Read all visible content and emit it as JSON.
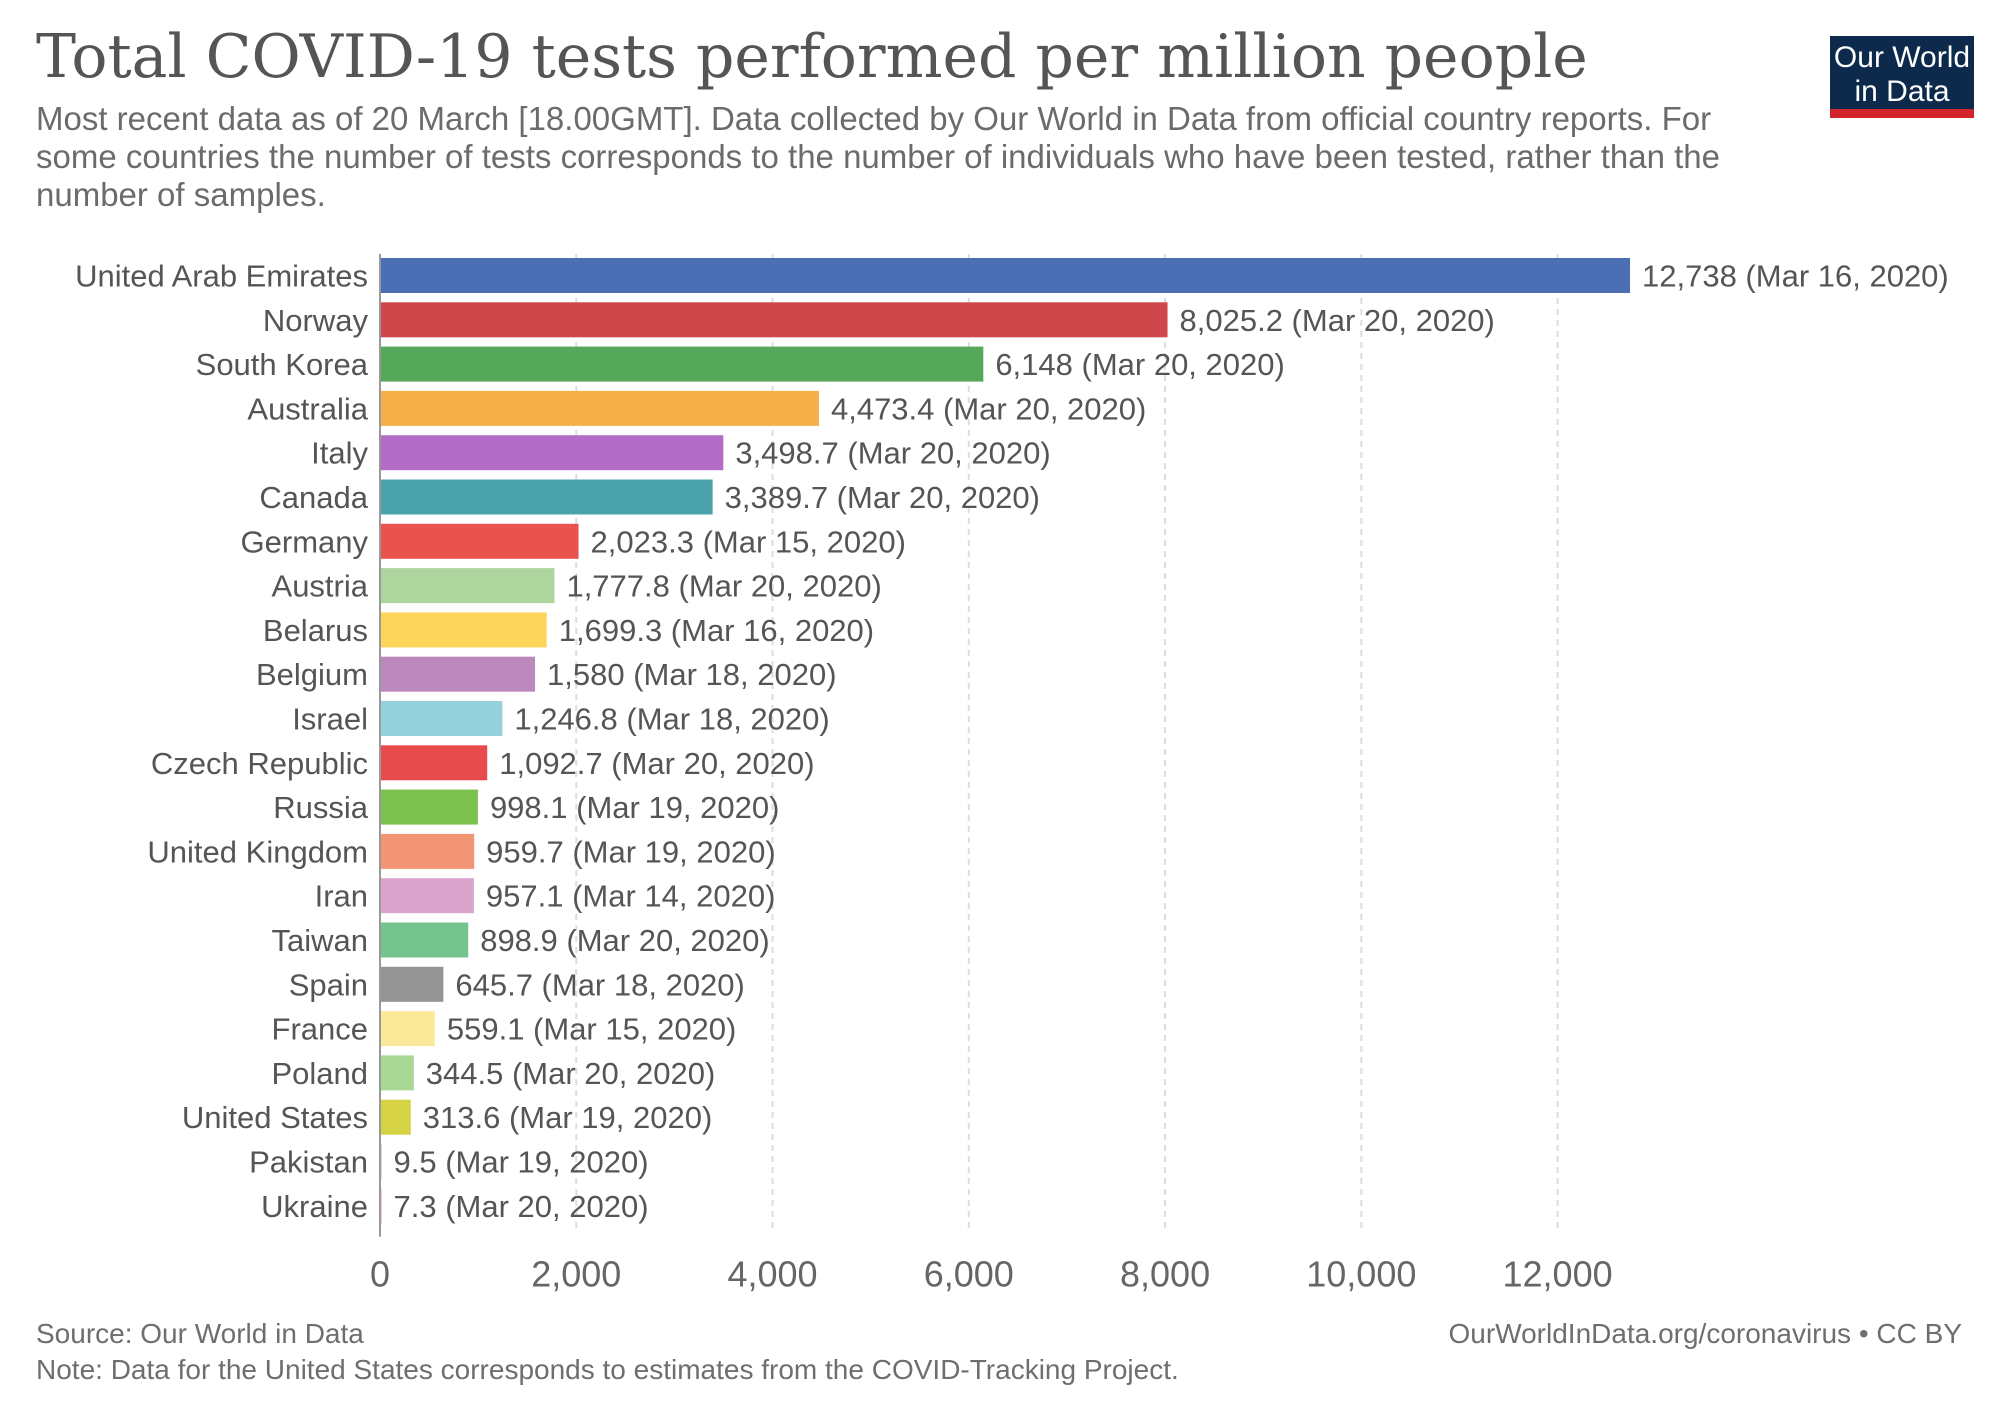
{
  "title": "Total COVID-19 tests performed per million people",
  "subtitle": "Most recent data as of 20 March [18.00GMT]. Data collected by Our World in Data from official country reports. For some countries the number of tests corresponds to the number of individuals who have been tested, rather than the number of samples.",
  "logo": {
    "line1": "Our World",
    "line2": "in Data"
  },
  "footer": {
    "source": "Source: Our World in Data",
    "note": "Note: Data for the United States corresponds to estimates from the COVID-Tracking Project.",
    "url": "OurWorldInData.org/coronavirus • CC BY"
  },
  "chart_data": {
    "type": "bar",
    "orientation": "horizontal",
    "title": "Total COVID-19 tests performed per million people",
    "xlim": [
      0,
      12738
    ],
    "xticks": [
      0,
      2000,
      4000,
      6000,
      8000,
      10000,
      12000
    ],
    "xtick_labels": [
      "0",
      "2,000",
      "4,000",
      "6,000",
      "8,000",
      "10,000",
      "12,000"
    ],
    "grid": "vertical dashed",
    "categories": [
      "United Arab Emirates",
      "Norway",
      "South Korea",
      "Australia",
      "Italy",
      "Canada",
      "Germany",
      "Austria",
      "Belarus",
      "Belgium",
      "Israel",
      "Czech Republic",
      "Russia",
      "United Kingdom",
      "Iran",
      "Taiwan",
      "Spain",
      "France",
      "Poland",
      "United States",
      "Pakistan",
      "Ukraine"
    ],
    "values": [
      12738,
      8025.2,
      6148,
      4473.4,
      3498.7,
      3389.7,
      2023.3,
      1777.8,
      1699.3,
      1580,
      1246.8,
      1092.7,
      998.1,
      959.7,
      957.1,
      898.9,
      645.7,
      559.1,
      344.5,
      313.6,
      9.5,
      7.3
    ],
    "labels": [
      "12,738 (Mar 16, 2020)",
      "8,025.2 (Mar 20, 2020)",
      "6,148 (Mar 20, 2020)",
      "4,473.4 (Mar 20, 2020)",
      "3,498.7 (Mar 20, 2020)",
      "3,389.7 (Mar 20, 2020)",
      "2,023.3 (Mar 15, 2020)",
      "1,777.8 (Mar 20, 2020)",
      "1,699.3 (Mar 16, 2020)",
      "1,580 (Mar 18, 2020)",
      "1,246.8 (Mar 18, 2020)",
      "1,092.7 (Mar 20, 2020)",
      "998.1 (Mar 19, 2020)",
      "959.7 (Mar 19, 2020)",
      "957.1 (Mar 14, 2020)",
      "898.9 (Mar 20, 2020)",
      "645.7 (Mar 18, 2020)",
      "559.1 (Mar 15, 2020)",
      "344.5 (Mar 20, 2020)",
      "313.6 (Mar 19, 2020)",
      "9.5 (Mar 19, 2020)",
      "7.3 (Mar 20, 2020)"
    ],
    "colors": [
      "#4c6eb5",
      "#d0474b",
      "#55a85a",
      "#f6b04a",
      "#b46dc6",
      "#4aa3aa",
      "#e9534f",
      "#aed59e",
      "#fdd55a",
      "#bb89bb",
      "#94d1da",
      "#e74b4d",
      "#7bc150",
      "#f19574",
      "#d9a5cd",
      "#75c48f",
      "#949494",
      "#fbe99a",
      "#a9d794",
      "#d5d345",
      "#a8c0e0",
      "#e4a6a6"
    ]
  }
}
